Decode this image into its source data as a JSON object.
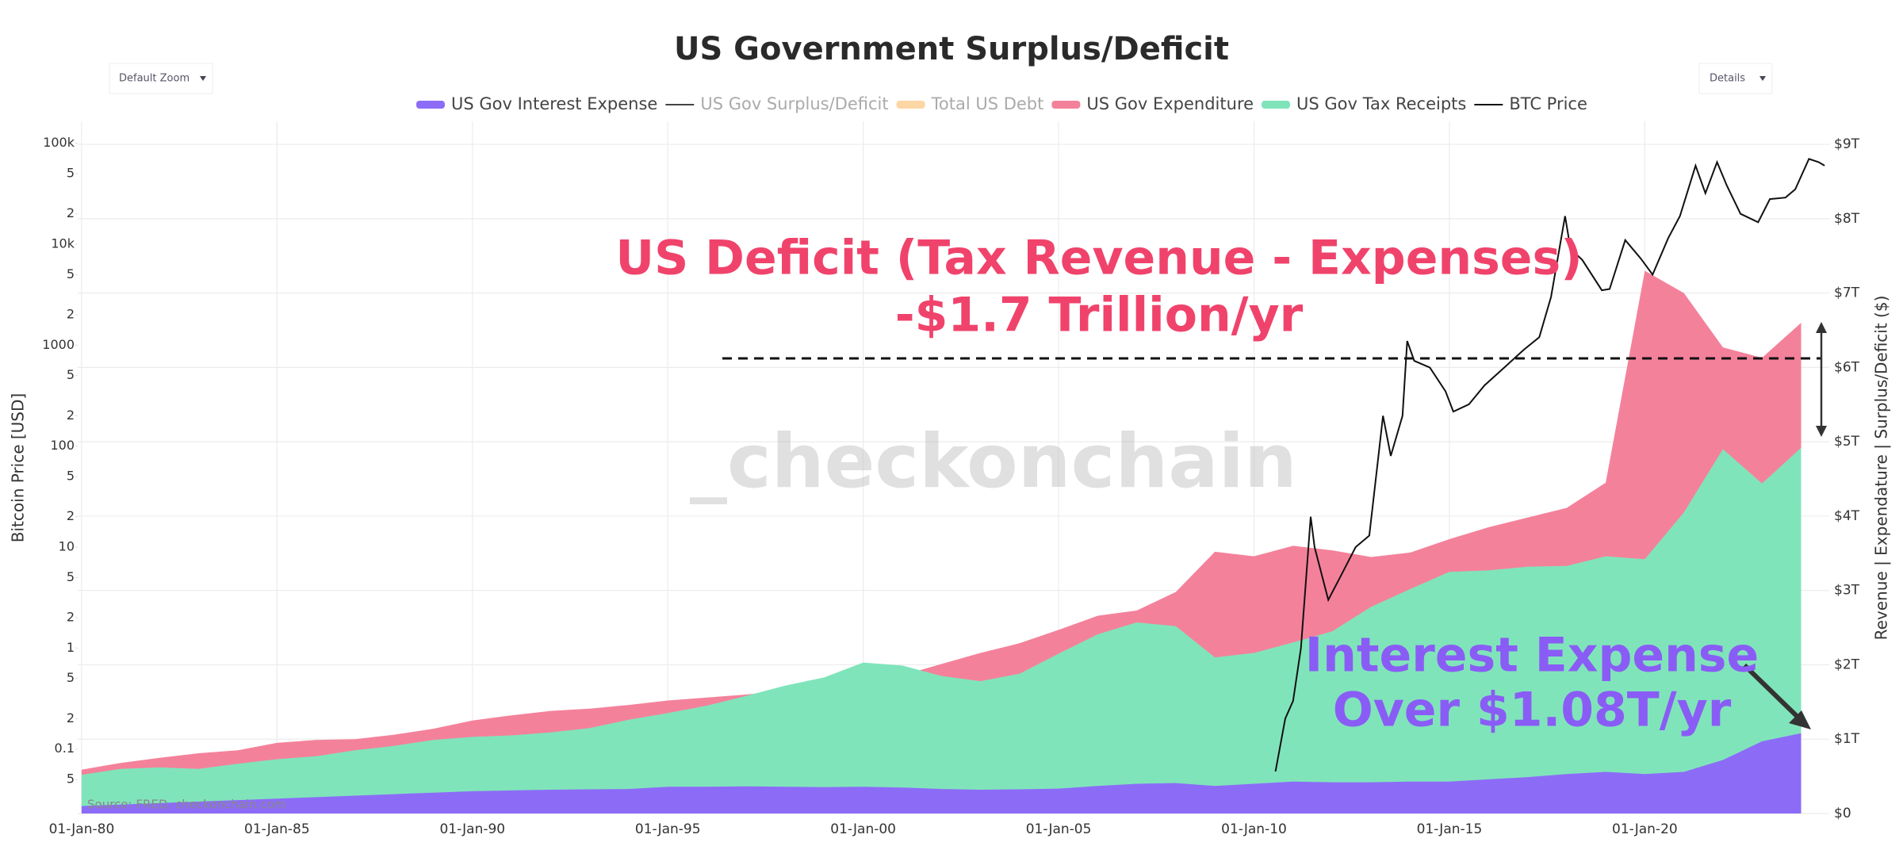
{
  "chart_data": {
    "type": "area",
    "title": "US Government Surplus/Deficit",
    "buttons": [
      "Default Zoom",
      "Details"
    ],
    "x": [
      1980,
      1981,
      1982,
      1983,
      1984,
      1985,
      1986,
      1987,
      1988,
      1989,
      1990,
      1991,
      1992,
      1993,
      1994,
      1995,
      1996,
      1997,
      1998,
      1999,
      2000,
      2001,
      2002,
      2003,
      2004,
      2005,
      2006,
      2007,
      2008,
      2009,
      2010,
      2011,
      2012,
      2013,
      2014,
      2015,
      2016,
      2017,
      2018,
      2019,
      2020,
      2021,
      2022,
      2023,
      2024
    ],
    "xlim": [
      1979.9,
      2024.72
    ],
    "xticks": [
      {
        "value": 1980,
        "label": "01-Jan-80"
      },
      {
        "value": 1985,
        "label": "01-Jan-85"
      },
      {
        "value": 1990,
        "label": "01-Jan-90"
      },
      {
        "value": 1995,
        "label": "01-Jan-95"
      },
      {
        "value": 2000,
        "label": "01-Jan-00"
      },
      {
        "value": 2005,
        "label": "01-Jan-05"
      },
      {
        "value": 2010,
        "label": "01-Jan-10"
      },
      {
        "value": 2015,
        "label": "01-Jan-15"
      },
      {
        "value": 2020,
        "label": "01-Jan-20"
      }
    ],
    "ylabel": "Bitcoin Price [USD]",
    "ylim": [
      0.023,
      165000
    ],
    "y_log": true,
    "yticks": [
      {
        "value": 0.05,
        "label": "5"
      },
      0.1,
      {
        "value": 0.2,
        "label": "2"
      },
      {
        "value": 0.5,
        "label": "5"
      },
      1,
      {
        "value": 2,
        "label": "2"
      },
      {
        "value": 5,
        "label": "5"
      },
      10,
      {
        "value": 20,
        "label": "2"
      },
      {
        "value": 50,
        "label": "5"
      },
      100,
      {
        "value": 200,
        "label": "2"
      },
      {
        "value": 500,
        "label": "5"
      },
      1000,
      {
        "value": 2000,
        "label": "2"
      },
      {
        "value": 5000,
        "label": "5"
      },
      {
        "value": 10000,
        "label": "10k"
      },
      {
        "value": 20000,
        "label": "2"
      },
      {
        "value": 50000,
        "label": "5"
      },
      {
        "value": 100000,
        "label": "100k"
      }
    ],
    "y2label": "Revenue | Expendature | Surplus/Deficit ($)",
    "y2lim": [
      0,
      9310000000000.0
    ],
    "y2ticks": [
      {
        "value": 0,
        "label": "$0"
      },
      {
        "value": 1000000000000.0,
        "label": "$1T"
      },
      {
        "value": 2000000000000.0,
        "label": "$2T"
      },
      {
        "value": 3000000000000.0,
        "label": "$3T"
      },
      {
        "value": 4000000000000.0,
        "label": "$4T"
      },
      {
        "value": 5000000000000.0,
        "label": "$5T"
      },
      {
        "value": 6000000000000.0,
        "label": "$6T"
      },
      {
        "value": 7000000000000.0,
        "label": "$7T"
      },
      {
        "value": 8000000000000.0,
        "label": "$8T"
      },
      {
        "value": 9000000000000.0,
        "label": "$9T"
      }
    ],
    "grid": true,
    "series": [
      {
        "name": "US Gov Interest Expense",
        "color": "#8c6cf7",
        "kind": "area",
        "axis": "y2",
        "values": [
          100000000000.0,
          120000000000.0,
          140000000000.0,
          160000000000.0,
          180000000000.0,
          200000000000.0,
          220000000000.0,
          240000000000.0,
          260000000000.0,
          280000000000.0,
          300000000000.0,
          310000000000.0,
          320000000000.0,
          325000000000.0,
          330000000000.0,
          360000000000.0,
          360000000000.0,
          365000000000.0,
          360000000000.0,
          355000000000.0,
          360000000000.0,
          350000000000.0,
          330000000000.0,
          320000000000.0,
          325000000000.0,
          335000000000.0,
          370000000000.0,
          400000000000.0,
          410000000000.0,
          370000000000.0,
          400000000000.0,
          430000000000.0,
          420000000000.0,
          420000000000.0,
          430000000000.0,
          430000000000.0,
          460000000000.0,
          490000000000.0,
          530000000000.0,
          560000000000.0,
          530000000000.0,
          560000000000.0,
          720000000000.0,
          970000000000.0,
          1080000000000.0
        ]
      },
      {
        "name": "US Gov Surplus/Deficit",
        "color": "#444444",
        "kind": "line",
        "visible": false
      },
      {
        "name": "Total US Debt",
        "color": "#fcd6a4",
        "kind": "area",
        "visible": false
      },
      {
        "name": "US Gov Expenditure",
        "color": "#f4819a",
        "kind": "area",
        "axis": "y2",
        "values": [
          590000000000.0,
          680000000000.0,
          750000000000.0,
          810000000000.0,
          850000000000.0,
          950000000000.0,
          990000000000.0,
          1000000000000.0,
          1060000000000.0,
          1140000000000.0,
          1250000000000.0,
          1320000000000.0,
          1380000000000.0,
          1410000000000.0,
          1460000000000.0,
          1520000000000.0,
          1560000000000.0,
          1600000000000.0,
          1650000000000.0,
          1700000000000.0,
          1790000000000.0,
          1860000000000.0,
          2010000000000.0,
          2160000000000.0,
          2290000000000.0,
          2470000000000.0,
          2660000000000.0,
          2730000000000.0,
          2980000000000.0,
          3520000000000.0,
          3460000000000.0,
          3600000000000.0,
          3540000000000.0,
          3450000000000.0,
          3510000000000.0,
          3690000000000.0,
          3850000000000.0,
          3980000000000.0,
          4110000000000.0,
          4450000000000.0,
          7300000000000.0,
          7000000000000.0,
          6270000000000.0,
          6130000000000.0,
          6600000000000.0
        ]
      },
      {
        "name": "US Gov Tax Receipts",
        "color": "#80e4bb",
        "kind": "area",
        "axis": "y2",
        "values": [
          520000000000.0,
          600000000000.0,
          620000000000.0,
          600000000000.0,
          670000000000.0,
          730000000000.0,
          770000000000.0,
          850000000000.0,
          910000000000.0,
          990000000000.0,
          1030000000000.0,
          1050000000000.0,
          1090000000000.0,
          1150000000000.0,
          1260000000000.0,
          1350000000000.0,
          1450000000000.0,
          1580000000000.0,
          1720000000000.0,
          1830000000000.0,
          2030000000000.0,
          1990000000000.0,
          1850000000000.0,
          1780000000000.0,
          1880000000000.0,
          2150000000000.0,
          2410000000000.0,
          2570000000000.0,
          2520000000000.0,
          2100000000000.0,
          2160000000000.0,
          2300000000000.0,
          2450000000000.0,
          2780000000000.0,
          3020000000000.0,
          3250000000000.0,
          3270000000000.0,
          3320000000000.0,
          3330000000000.0,
          3460000000000.0,
          3420000000000.0,
          4050000000000.0,
          4900000000000.0,
          4440000000000.0,
          4920000000000.0
        ]
      },
      {
        "name": "BTC Price",
        "color": "#111111",
        "kind": "line",
        "axis": "y",
        "x": [
          2010.55,
          2010.8,
          2011.0,
          2011.2,
          2011.45,
          2011.55,
          2011.9,
          2012.2,
          2012.6,
          2012.95,
          2013.2,
          2013.3,
          2013.5,
          2013.8,
          2013.92,
          2014.1,
          2014.5,
          2014.9,
          2015.1,
          2015.5,
          2015.9,
          2016.5,
          2016.9,
          2017.3,
          2017.6,
          2017.96,
          2018.1,
          2018.4,
          2018.9,
          2019.1,
          2019.5,
          2019.9,
          2020.2,
          2020.6,
          2020.9,
          2021.3,
          2021.55,
          2021.85,
          2022.1,
          2022.45,
          2022.9,
          2023.2,
          2023.6,
          2023.85,
          2024.2,
          2024.45,
          2024.6
        ],
        "values": [
          0.06,
          0.2,
          0.3,
          1,
          20,
          10,
          3,
          5,
          10,
          13,
          90,
          200,
          80,
          200,
          1100,
          700,
          600,
          350,
          220,
          260,
          400,
          650,
          900,
          1200,
          3000,
          19000,
          9000,
          7000,
          3500,
          3600,
          11000,
          7200,
          5000,
          11500,
          19000,
          60000,
          32000,
          65000,
          38000,
          20000,
          16500,
          28000,
          29000,
          35000,
          70000,
          65000,
          60000
        ]
      }
    ],
    "annotations": [
      {
        "text": [
          "US Deficit (Tax Revenue - Expenses)",
          "-$1.7 Trillion/yr"
        ],
        "color": "#f0436b"
      },
      {
        "text": [
          "Interest Expense",
          "Over $1.08T/yr"
        ],
        "color": "#8a5cf6"
      }
    ],
    "watermark": "_checkonchain",
    "source": "Source: FRED, checkonchain.com"
  }
}
